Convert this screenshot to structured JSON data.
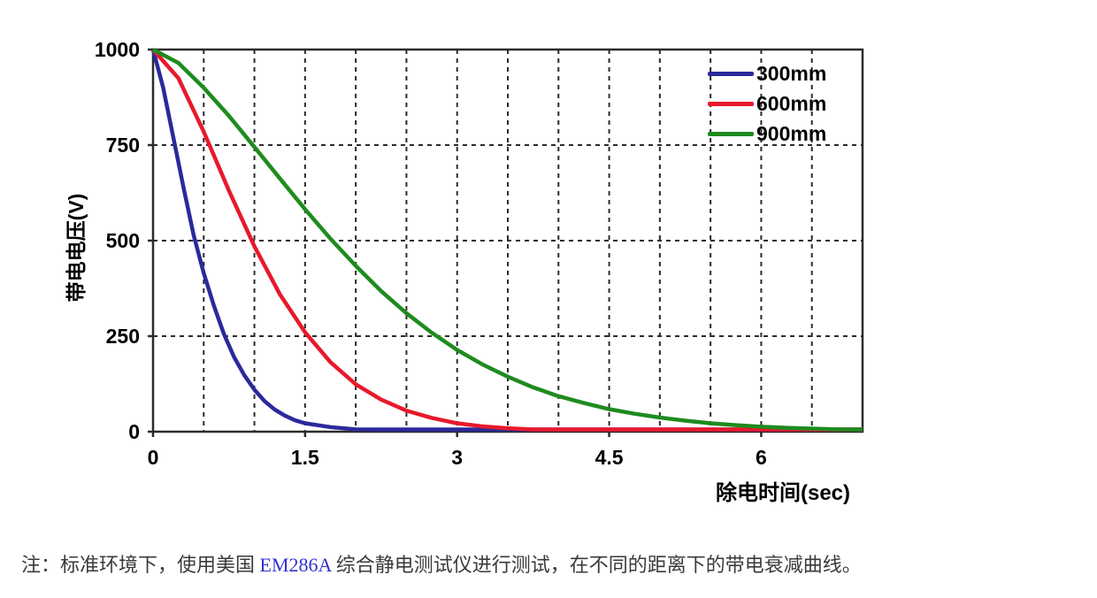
{
  "chart_data": {
    "type": "line",
    "title": "",
    "xlabel": "除电时间(sec)",
    "ylabel": "带电电压(V)",
    "xlim": [
      0,
      7
    ],
    "ylim": [
      0,
      1000
    ],
    "x_major_ticks": [
      0,
      1.5,
      3,
      4.5,
      6
    ],
    "x_tick_labels": [
      "0",
      "1.5",
      "3",
      "4.5",
      "6"
    ],
    "x_minor_grid_step": 0.5,
    "y_ticks": [
      0,
      250,
      500,
      750,
      1000
    ],
    "y_tick_labels": [
      "0",
      "250",
      "500",
      "750",
      "1000"
    ],
    "grid": "dashed",
    "legend_position": "top-right-inside",
    "series": [
      {
        "name": "300mm",
        "color": "#2A2A9C",
        "x": [
          0,
          0.1,
          0.2,
          0.3,
          0.4,
          0.5,
          0.6,
          0.7,
          0.8,
          0.9,
          1,
          1.1,
          1.2,
          1.3,
          1.4,
          1.5,
          1.75,
          2,
          2.25,
          2.5,
          2.75,
          3,
          3.5,
          4,
          4.5,
          5,
          5.5,
          6,
          6.5,
          7
        ],
        "values": [
          1000,
          900,
          770,
          640,
          515,
          415,
          330,
          255,
          195,
          148,
          110,
          80,
          58,
          42,
          30,
          22,
          12,
          6,
          3,
          2,
          1,
          0,
          0,
          0,
          0,
          0,
          0,
          0,
          0,
          0
        ]
      },
      {
        "name": "600mm",
        "color": "#E8192C",
        "x": [
          0,
          0.25,
          0.5,
          0.75,
          1,
          1.25,
          1.5,
          1.75,
          2,
          2.25,
          2.5,
          2.75,
          3,
          3.25,
          3.5,
          3.75,
          4,
          4.25,
          4.5,
          5,
          5.5,
          6,
          6.5,
          7
        ],
        "values": [
          1000,
          925,
          785,
          630,
          485,
          360,
          260,
          182,
          124,
          84,
          55,
          36,
          22,
          14,
          9,
          5,
          3,
          2,
          1,
          0,
          0,
          0,
          0,
          0
        ]
      },
      {
        "name": "900mm",
        "color": "#1E8B1E",
        "x": [
          0,
          0.25,
          0.5,
          0.75,
          1,
          1.25,
          1.5,
          1.75,
          2,
          2.25,
          2.5,
          2.75,
          3,
          3.25,
          3.5,
          3.75,
          4,
          4.25,
          4.5,
          4.75,
          5,
          5.25,
          5.5,
          5.75,
          6,
          6.25,
          6.5,
          6.75,
          7
        ],
        "values": [
          1000,
          965,
          900,
          826,
          745,
          663,
          582,
          505,
          434,
          368,
          310,
          259,
          214,
          176,
          144,
          116,
          93,
          75,
          59,
          47,
          37,
          29,
          22,
          17,
          13,
          10,
          8,
          6,
          5
        ]
      }
    ]
  },
  "note": {
    "prefix": "注：标准环境下，使用美国 ",
    "model": "EM286A",
    "suffix": " 综合静电测试仪进行测试，在不同的距离下的带电衰减曲线。"
  },
  "colors": {
    "axis": "#2b2b2b",
    "grid": "#2b2b2b",
    "tick_text": "#000000",
    "note_text": "#3a3a3a",
    "model_text": "#3333cc"
  }
}
